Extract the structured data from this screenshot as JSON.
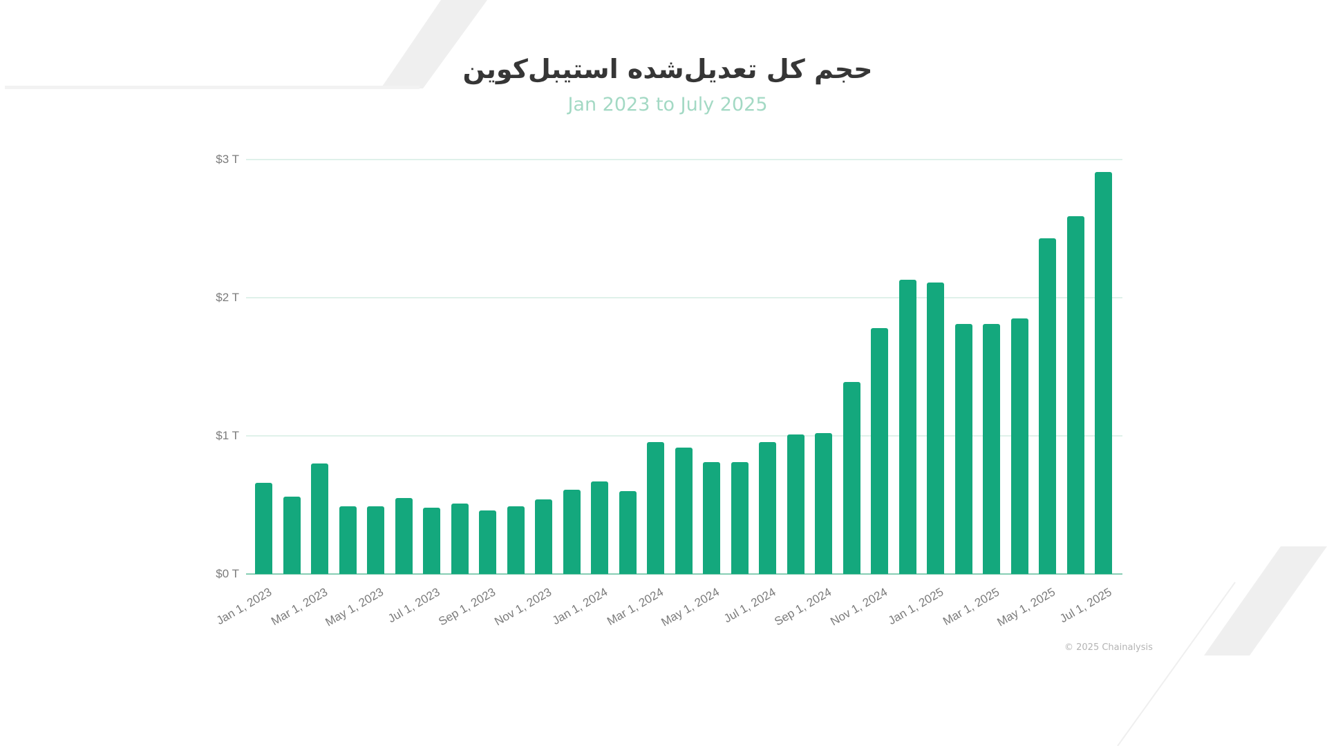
{
  "title": "حجم کل تعدیل‌شده استیبل‌کوین",
  "subtitle": "Jan 2023 to July 2025",
  "footer": {
    "copyright": "© 2025 Chainalysis"
  },
  "colors": {
    "bar": "#14a87d",
    "title": "#363636",
    "subtitle": "#a3d9c4",
    "gridline": "#dff1ea",
    "axis_text": "#7b7b7b",
    "decoration": "#efefef"
  },
  "chart_data": {
    "type": "bar",
    "title": "حجم کل تعدیل‌شده استیبل‌کوین",
    "subtitle": "Jan 2023 to July 2025",
    "xlabel": "",
    "ylabel": "",
    "ylim": [
      0,
      3
    ],
    "y_unit": "Trillion USD",
    "yticks": [
      {
        "value": 0,
        "label": "$0 T"
      },
      {
        "value": 1,
        "label": "$1 T"
      },
      {
        "value": 2,
        "label": "$2 T"
      },
      {
        "value": 3,
        "label": "$3 T"
      }
    ],
    "grid": true,
    "legend": "none",
    "categories": [
      "Jan 1, 2023",
      "Feb 1, 2023",
      "Mar 1, 2023",
      "Apr 1, 2023",
      "May 1, 2023",
      "Jun 1, 2023",
      "Jul 1, 2023",
      "Aug 1, 2023",
      "Sep 1, 2023",
      "Oct 1, 2023",
      "Nov 1, 2023",
      "Dec 1, 2023",
      "Jan 1, 2024",
      "Feb 1, 2024",
      "Mar 1, 2024",
      "Apr 1, 2024",
      "May 1, 2024",
      "Jun 1, 2024",
      "Jul 1, 2024",
      "Aug 1, 2024",
      "Sep 1, 2024",
      "Oct 1, 2024",
      "Nov 1, 2024",
      "Dec 1, 2024",
      "Jan 1, 2025",
      "Feb 1, 2025",
      "Mar 1, 2025",
      "Apr 1, 2025",
      "May 1, 2025",
      "Jun 1, 2025",
      "Jul 1, 2025"
    ],
    "values": [
      0.66,
      0.56,
      0.8,
      0.49,
      0.49,
      0.55,
      0.48,
      0.51,
      0.46,
      0.49,
      0.54,
      0.61,
      0.67,
      0.6,
      0.955,
      0.915,
      0.81,
      0.81,
      0.955,
      1.01,
      1.02,
      1.39,
      1.78,
      2.13,
      2.11,
      1.81,
      1.81,
      1.85,
      2.43,
      2.59,
      2.91
    ],
    "xtick_labels_shown": [
      "Jan 1, 2023",
      "Mar 1, 2023",
      "May 1, 2023",
      "Jul 1, 2023",
      "Sep 1, 2023",
      "Nov 1, 2023",
      "Jan 1, 2024",
      "Mar 1, 2024",
      "May 1, 2024",
      "Jul 1, 2024",
      "Sep 1, 2024",
      "Nov 1, 2024",
      "Jan 1, 2025",
      "Mar 1, 2025",
      "May 1, 2025",
      "Jul 1, 2025"
    ]
  }
}
